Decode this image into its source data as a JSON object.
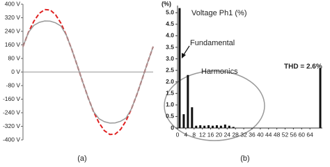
{
  "chart_data": [
    {
      "type": "line",
      "caption": "(a)",
      "ylim": [
        -400,
        400
      ],
      "yticks": [
        {
          "value": 400,
          "label": "400 V"
        },
        {
          "value": 320,
          "label": "320 V"
        },
        {
          "value": 240,
          "label": "240 V"
        },
        {
          "value": 160,
          "label": "160 V"
        },
        {
          "value": 80,
          "label": "80 V"
        },
        {
          "value": 0,
          "label": "0 V"
        },
        {
          "value": -80,
          "label": "-80 V"
        },
        {
          "value": -160,
          "label": "-160 V"
        },
        {
          "value": -240,
          "label": "-240 V"
        },
        {
          "value": -320,
          "label": "-320 V"
        },
        {
          "value": -400,
          "label": "-400 V"
        }
      ],
      "series": [
        {
          "color": "#e02020",
          "dashed": true,
          "values": [
            150,
            233,
            299,
            346,
            368,
            366,
            338,
            288,
            217,
            133,
            39,
            -58,
            -150,
            -233,
            -299,
            -346,
            -368,
            -366,
            -338,
            -288,
            -217,
            -133,
            -39,
            58,
            150
          ]
        },
        {
          "color": "#999999",
          "values": [
            150,
            233,
            275,
            293,
            301,
            300,
            290,
            271,
            217,
            133,
            39,
            -58,
            -150,
            -233,
            -275,
            -293,
            -301,
            -300,
            -290,
            -271,
            -217,
            -133,
            -39,
            58,
            150
          ]
        }
      ]
    },
    {
      "type": "bar",
      "title": "Voltage Ph1 (%)",
      "caption": "(b)",
      "ylabel": "(%)",
      "annotations": [
        "Fundamental",
        "Harmonics",
        "THD = 2.6%"
      ],
      "color": "#111111",
      "xlim": [
        0,
        70
      ],
      "xticks": [
        0,
        4,
        8,
        12,
        16,
        20,
        24,
        28,
        32,
        36,
        40,
        44,
        48,
        52,
        56,
        60,
        64
      ],
      "ylim": [
        0,
        5.25
      ],
      "yticks": [
        0,
        0.5,
        {
          "value": 1,
          "label": "1.0"
        },
        1.5,
        {
          "value": 2,
          "label": "2.0"
        },
        2.5,
        {
          "value": 3,
          "label": "3.0"
        },
        3.5,
        {
          "value": 4,
          "label": "4.0"
        },
        4.5,
        {
          "value": 5,
          "label": "5.0"
        }
      ],
      "x": [
        1,
        3,
        5,
        7,
        9,
        11,
        13,
        15,
        17,
        19,
        21,
        23,
        25,
        27,
        69
      ],
      "values": [
        5.2,
        0.6,
        2.3,
        0.9,
        0.1,
        0.12,
        0.1,
        0.12,
        0.1,
        0.12,
        0.1,
        0.15,
        0.1,
        0.05,
        2.6
      ]
    }
  ]
}
